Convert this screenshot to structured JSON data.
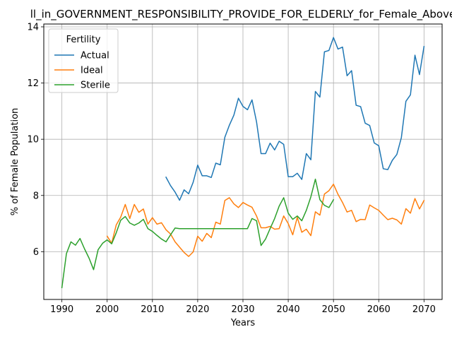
{
  "chart_data": {
    "type": "line",
    "title": "ll_in_GOVERNMENT_RESPONSIBILITY_PROVIDE_FOR_ELDERLY_for_Female_Above",
    "xlabel": "Years",
    "ylabel": "% of Female Population",
    "xlim": [
      1986,
      2074
    ],
    "ylim": [
      4.3,
      14.1
    ],
    "xticks": [
      1990,
      2000,
      2010,
      2020,
      2030,
      2040,
      2050,
      2060,
      2070
    ],
    "yticks": [
      6,
      8,
      10,
      12,
      14
    ],
    "grid": true,
    "legend": {
      "title": "Fertility",
      "placement": "top-left"
    },
    "series": [
      {
        "name": "Actual",
        "color": "#1f77b4",
        "x": [
          2013,
          2014,
          2015,
          2016,
          2017,
          2018,
          2019,
          2020,
          2021,
          2022,
          2023,
          2024,
          2025,
          2026,
          2027,
          2028,
          2029,
          2030,
          2031,
          2032,
          2033,
          2034,
          2035,
          2036,
          2037,
          2038,
          2039,
          2040,
          2041,
          2042,
          2043,
          2044,
          2045,
          2046,
          2047,
          2048,
          2049,
          2050,
          2051,
          2052,
          2053,
          2054,
          2055,
          2056,
          2057,
          2058,
          2059,
          2060,
          2061,
          2062,
          2063,
          2064,
          2065,
          2066,
          2067,
          2068,
          2069,
          2070
        ],
        "y": [
          8.65,
          8.35,
          8.12,
          7.83,
          8.2,
          8.06,
          8.47,
          9.08,
          8.7,
          8.7,
          8.64,
          9.15,
          9.09,
          10.07,
          10.5,
          10.86,
          11.46,
          11.17,
          11.05,
          11.4,
          10.62,
          9.49,
          9.49,
          9.86,
          9.62,
          9.93,
          9.82,
          8.67,
          8.67,
          8.79,
          8.57,
          9.49,
          9.27,
          11.7,
          11.5,
          13.11,
          13.16,
          13.62,
          13.21,
          13.28,
          12.26,
          12.44,
          11.21,
          11.16,
          10.57,
          10.49,
          9.87,
          9.77,
          8.95,
          8.92,
          9.25,
          9.46,
          10.06,
          11.35,
          11.58,
          12.99,
          12.3,
          13.3
        ]
      },
      {
        "name": "Ideal",
        "color": "#ff7f0e",
        "x": [
          2000,
          2001,
          2002,
          2003,
          2004,
          2005,
          2006,
          2007,
          2008,
          2009,
          2010,
          2011,
          2012,
          2013,
          2014,
          2015,
          2016,
          2017,
          2018,
          2019,
          2020,
          2021,
          2022,
          2023,
          2024,
          2025,
          2026,
          2027,
          2028,
          2029,
          2030,
          2031,
          2032,
          2033,
          2034,
          2035,
          2036,
          2037,
          2038,
          2039,
          2040,
          2041,
          2042,
          2043,
          2044,
          2045,
          2046,
          2047,
          2048,
          2049,
          2050,
          2051,
          2052,
          2053,
          2054,
          2055,
          2056,
          2057,
          2058,
          2059,
          2060,
          2061,
          2062,
          2063,
          2064,
          2065,
          2066,
          2067,
          2068,
          2069,
          2070
        ],
        "y": [
          6.55,
          6.3,
          6.95,
          7.23,
          7.68,
          7.18,
          7.68,
          7.4,
          7.52,
          6.98,
          7.21,
          6.98,
          7.03,
          6.78,
          6.63,
          6.35,
          6.16,
          5.97,
          5.83,
          5.99,
          6.55,
          6.37,
          6.65,
          6.5,
          7.05,
          6.98,
          7.82,
          7.92,
          7.7,
          7.57,
          7.75,
          7.66,
          7.58,
          7.27,
          6.85,
          6.85,
          6.9,
          6.8,
          6.82,
          7.27,
          7.0,
          6.6,
          7.22,
          6.69,
          6.8,
          6.57,
          7.42,
          7.3,
          8.05,
          8.17,
          8.4,
          8.04,
          7.75,
          7.41,
          7.47,
          7.07,
          7.15,
          7.14,
          7.66,
          7.56,
          7.47,
          7.3,
          7.14,
          7.19,
          7.13,
          6.98,
          7.53,
          7.37,
          7.89,
          7.52,
          7.82
        ]
      },
      {
        "name": "Sterile",
        "color": "#2ca02c",
        "x": [
          1990,
          1991,
          1992,
          1993,
          1994,
          1995,
          1996,
          1997,
          1998,
          1999,
          2000,
          2001,
          2002,
          2003,
          2004,
          2005,
          2006,
          2007,
          2008,
          2009,
          2010,
          2011,
          2012,
          2013,
          2014,
          2015,
          2016,
          2017,
          2018,
          2019,
          2020,
          2021,
          2022,
          2023,
          2024,
          2025,
          2026,
          2027,
          2028,
          2029,
          2030,
          2031,
          2032,
          2033,
          2034,
          2035,
          2036,
          2037,
          2038,
          2039,
          2040,
          2041,
          2042,
          2043,
          2044,
          2045,
          2046,
          2047,
          2048,
          2049,
          2050
        ],
        "y": [
          4.72,
          5.93,
          6.35,
          6.23,
          6.47,
          6.1,
          5.77,
          5.36,
          6.07,
          6.3,
          6.42,
          6.28,
          6.67,
          7.12,
          7.25,
          7.02,
          6.94,
          7.02,
          7.15,
          6.82,
          6.72,
          6.58,
          6.45,
          6.35,
          6.6,
          6.84,
          6.82,
          6.82,
          6.82,
          6.82,
          6.82,
          6.82,
          6.82,
          6.82,
          6.82,
          6.82,
          6.82,
          6.82,
          6.82,
          6.82,
          6.82,
          6.82,
          7.18,
          7.1,
          6.22,
          6.45,
          6.82,
          7.18,
          7.62,
          7.92,
          7.37,
          7.15,
          7.27,
          7.1,
          7.47,
          7.95,
          8.58,
          7.85,
          7.65,
          7.57,
          7.85
        ]
      }
    ]
  }
}
